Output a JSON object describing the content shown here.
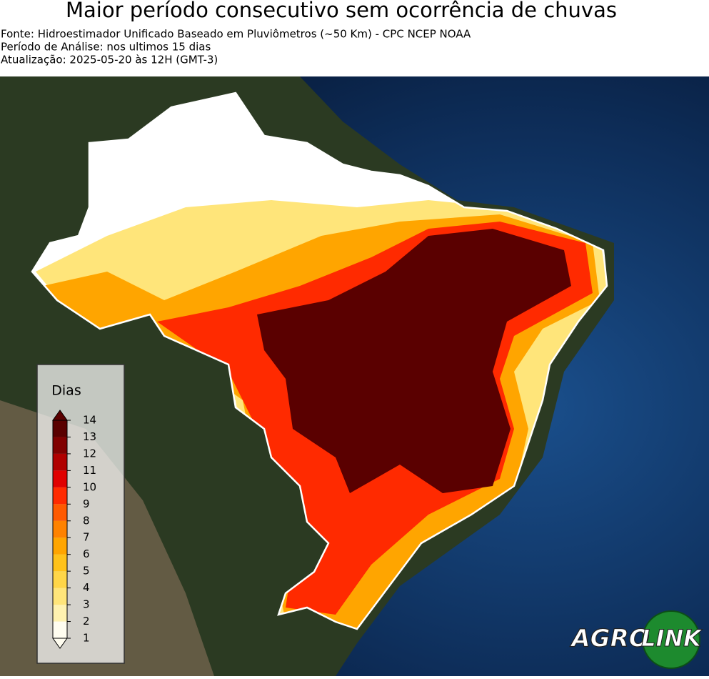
{
  "header": {
    "title": "Maior período consecutivo sem ocorrência de chuvas",
    "lines": [
      "Fonte: Hidroestimador Unificado Baseado em Pluviômetros (~50 Km) - CPC NCEP NOAA",
      "Período de Análise: nos ultimos 15 dias",
      "Atualização: 2025-05-20 às 12H (GMT-3)"
    ]
  },
  "legend": {
    "title": "Dias",
    "ticks": [
      1,
      2,
      3,
      4,
      5,
      6,
      7,
      8,
      9,
      10,
      11,
      12,
      13,
      14
    ],
    "colors": [
      "#fffdf0",
      "#fff2b0",
      "#ffe57a",
      "#ffd648",
      "#ffc21a",
      "#ffa500",
      "#ff8200",
      "#ff5a00",
      "#ff2a00",
      "#e00000",
      "#b00000",
      "#800000",
      "#5a0000"
    ]
  },
  "logo": {
    "left": "AGRO",
    "right": "LINK"
  }
}
